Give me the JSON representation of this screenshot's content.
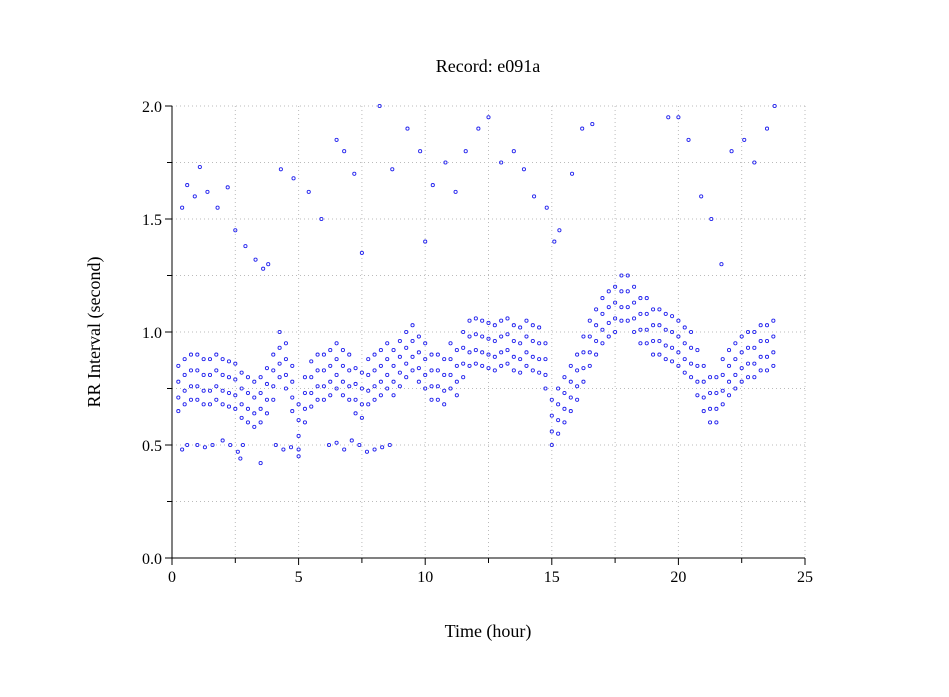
{
  "chart_data": {
    "type": "scatter",
    "title": "Record:  e091a",
    "xlabel": "Time (hour)",
    "ylabel": "RR Interval (second)",
    "xlim": [
      0,
      25
    ],
    "ylim": [
      0,
      2
    ],
    "xticks": [
      "0",
      "5",
      "10",
      "15",
      "20",
      "25"
    ],
    "yticks": [
      "0.0",
      "0.5",
      "1.0",
      "1.5",
      "2.0"
    ],
    "grid": true,
    "marker_color": "#2222ee",
    "band_points": [
      [
        0.25,
        0.65,
        0.71,
        0.78,
        0.85
      ],
      [
        0.5,
        0.68,
        0.74,
        0.81,
        0.88
      ],
      [
        0.75,
        0.7,
        0.76,
        0.83,
        0.9
      ],
      [
        1,
        0.7,
        0.76,
        0.83,
        0.9
      ],
      [
        1.25,
        0.68,
        0.74,
        0.81,
        0.88
      ],
      [
        1.5,
        0.68,
        0.74,
        0.81,
        0.88
      ],
      [
        1.75,
        0.7,
        0.76,
        0.83,
        0.9
      ],
      [
        2,
        0.68,
        0.74,
        0.81,
        0.88
      ],
      [
        2.25,
        0.67,
        0.73,
        0.8,
        0.87
      ],
      [
        2.5,
        0.66,
        0.72,
        0.79,
        0.86
      ],
      [
        2.75,
        0.62,
        0.68,
        0.75,
        0.82
      ],
      [
        3,
        0.6,
        0.66,
        0.73,
        0.8
      ],
      [
        3.25,
        0.58,
        0.64,
        0.71,
        0.78
      ],
      [
        3.5,
        0.6,
        0.66,
        0.73,
        0.8
      ],
      [
        3.75,
        0.64,
        0.7,
        0.77,
        0.84
      ],
      [
        4,
        0.7,
        0.76,
        0.83,
        0.9
      ],
      [
        4.25,
        0.8,
        0.86,
        0.93,
        1.0
      ],
      [
        4.5,
        0.75,
        0.81,
        0.88,
        0.95
      ],
      [
        4.75,
        0.65,
        0.71,
        0.78,
        0.85
      ],
      [
        5,
        0.48,
        0.54,
        0.61,
        0.68
      ],
      [
        5.25,
        0.6,
        0.66,
        0.73,
        0.8
      ],
      [
        5.5,
        0.67,
        0.73,
        0.8,
        0.87
      ],
      [
        5.75,
        0.7,
        0.76,
        0.83,
        0.9
      ],
      [
        6,
        0.7,
        0.76,
        0.83,
        0.9
      ],
      [
        6.25,
        0.72,
        0.78,
        0.85,
        0.92
      ],
      [
        6.5,
        0.75,
        0.81,
        0.88,
        0.95
      ],
      [
        6.75,
        0.72,
        0.78,
        0.85,
        0.92
      ],
      [
        7,
        0.7,
        0.76,
        0.83,
        0.9
      ],
      [
        7.25,
        0.64,
        0.7,
        0.77,
        0.84
      ],
      [
        7.5,
        0.62,
        0.68,
        0.75,
        0.82
      ],
      [
        7.75,
        0.68,
        0.74,
        0.81,
        0.88
      ],
      [
        8,
        0.7,
        0.76,
        0.83,
        0.9
      ],
      [
        8.25,
        0.72,
        0.78,
        0.85,
        0.92
      ],
      [
        8.5,
        0.75,
        0.81,
        0.88,
        0.95
      ],
      [
        8.75,
        0.72,
        0.78,
        0.85,
        0.92
      ],
      [
        9,
        0.76,
        0.82,
        0.89,
        0.96
      ],
      [
        9.25,
        0.8,
        0.86,
        0.93,
        1.0
      ],
      [
        9.5,
        0.83,
        0.89,
        0.96,
        1.03
      ],
      [
        9.75,
        0.78,
        0.84,
        0.91,
        0.98
      ],
      [
        10,
        0.75,
        0.81,
        0.88,
        0.95
      ],
      [
        10.25,
        0.7,
        0.76,
        0.83,
        0.9
      ],
      [
        10.5,
        0.7,
        0.76,
        0.83,
        0.9
      ],
      [
        10.75,
        0.68,
        0.74,
        0.81,
        0.88
      ],
      [
        11,
        0.75,
        0.81,
        0.88,
        0.95
      ],
      [
        11.25,
        0.72,
        0.78,
        0.85,
        0.92
      ],
      [
        11.5,
        0.8,
        0.86,
        0.93,
        1.0
      ],
      [
        11.75,
        0.85,
        0.91,
        0.98,
        1.05
      ],
      [
        12,
        0.86,
        0.92,
        0.99,
        1.06
      ],
      [
        12.25,
        0.85,
        0.91,
        0.98,
        1.05
      ],
      [
        12.5,
        0.84,
        0.9,
        0.97,
        1.04
      ],
      [
        12.75,
        0.83,
        0.89,
        0.96,
        1.03
      ],
      [
        13,
        0.85,
        0.91,
        0.98,
        1.05
      ],
      [
        13.25,
        0.86,
        0.92,
        0.99,
        1.06
      ],
      [
        13.5,
        0.83,
        0.89,
        0.96,
        1.03
      ],
      [
        13.75,
        0.82,
        0.88,
        0.95,
        1.02
      ],
      [
        14,
        0.85,
        0.91,
        0.98,
        1.05
      ],
      [
        14.25,
        0.83,
        0.89,
        0.96,
        1.03
      ],
      [
        14.5,
        0.82,
        0.88,
        0.95,
        1.02
      ],
      [
        14.75,
        0.75,
        0.81,
        0.88,
        0.95
      ],
      [
        15,
        0.5,
        0.56,
        0.63,
        0.7
      ],
      [
        15.25,
        0.55,
        0.61,
        0.68,
        0.75
      ],
      [
        15.5,
        0.6,
        0.66,
        0.73,
        0.8
      ],
      [
        15.75,
        0.65,
        0.71,
        0.78,
        0.85
      ],
      [
        16,
        0.7,
        0.76,
        0.83,
        0.9
      ],
      [
        16.25,
        0.78,
        0.84,
        0.91,
        0.98
      ],
      [
        16.5,
        0.85,
        0.91,
        0.98,
        1.05
      ],
      [
        16.75,
        0.9,
        0.96,
        1.03,
        1.1
      ],
      [
        17,
        0.95,
        1.01,
        1.08,
        1.15
      ],
      [
        17.25,
        0.98,
        1.04,
        1.11,
        1.18
      ],
      [
        17.5,
        1.0,
        1.06,
        1.13,
        1.2
      ],
      [
        17.75,
        1.05,
        1.11,
        1.18,
        1.25
      ],
      [
        18,
        1.05,
        1.11,
        1.18,
        1.25
      ],
      [
        18.25,
        1.0,
        1.06,
        1.13,
        1.2
      ],
      [
        18.5,
        0.95,
        1.01,
        1.08,
        1.15
      ],
      [
        18.75,
        0.95,
        1.01,
        1.08,
        1.15
      ],
      [
        19,
        0.9,
        0.96,
        1.03,
        1.1
      ],
      [
        19.25,
        0.9,
        0.96,
        1.03,
        1.1
      ],
      [
        19.5,
        0.88,
        0.94,
        1.01,
        1.08
      ],
      [
        19.75,
        0.87,
        0.93,
        1.0,
        1.07
      ],
      [
        20,
        0.85,
        0.91,
        0.98,
        1.05
      ],
      [
        20.25,
        0.82,
        0.88,
        0.95,
        1.02
      ],
      [
        20.5,
        0.8,
        0.86,
        0.93,
        1.0
      ],
      [
        20.75,
        0.72,
        0.78,
        0.85,
        0.92
      ],
      [
        21,
        0.65,
        0.71,
        0.78,
        0.85
      ],
      [
        21.25,
        0.6,
        0.66,
        0.73,
        0.8
      ],
      [
        21.5,
        0.6,
        0.66,
        0.73,
        0.8
      ],
      [
        21.75,
        0.68,
        0.74,
        0.81,
        0.88
      ],
      [
        22,
        0.72,
        0.78,
        0.85,
        0.92
      ],
      [
        22.25,
        0.75,
        0.81,
        0.88,
        0.95
      ],
      [
        22.5,
        0.78,
        0.84,
        0.91,
        0.98
      ],
      [
        22.75,
        0.8,
        0.86,
        0.93,
        1.0
      ],
      [
        23,
        0.8,
        0.86,
        0.93,
        1.0
      ],
      [
        23.25,
        0.83,
        0.89,
        0.96,
        1.03
      ],
      [
        23.5,
        0.83,
        0.89,
        0.96,
        1.03
      ],
      [
        23.75,
        0.85,
        0.91,
        0.98,
        1.05
      ]
    ],
    "points": [
      [
        0.4,
        0.48
      ],
      [
        0.6,
        0.5
      ],
      [
        1,
        0.5
      ],
      [
        1.3,
        0.49
      ],
      [
        1.6,
        0.5
      ],
      [
        2,
        0.52
      ],
      [
        2.3,
        0.5
      ],
      [
        2.6,
        0.47
      ],
      [
        2.8,
        0.5
      ],
      [
        2.7,
        0.44
      ],
      [
        3.5,
        0.42
      ],
      [
        4.1,
        0.5
      ],
      [
        4.4,
        0.48
      ],
      [
        4.7,
        0.49
      ],
      [
        5,
        0.45
      ],
      [
        6.2,
        0.5
      ],
      [
        6.5,
        0.51
      ],
      [
        6.8,
        0.48
      ],
      [
        7.1,
        0.52
      ],
      [
        7.4,
        0.5
      ],
      [
        7.7,
        0.47
      ],
      [
        8,
        0.48
      ],
      [
        8.3,
        0.49
      ],
      [
        8.6,
        0.5
      ],
      [
        0.4,
        1.55
      ],
      [
        0.6,
        1.65
      ],
      [
        0.9,
        1.6
      ],
      [
        1.1,
        1.73
      ],
      [
        1.4,
        1.62
      ],
      [
        1.8,
        1.55
      ],
      [
        2.2,
        1.64
      ],
      [
        2.5,
        1.45
      ],
      [
        2.9,
        1.38
      ],
      [
        3.3,
        1.32
      ],
      [
        3.6,
        1.28
      ],
      [
        3.8,
        1.3
      ],
      [
        4.3,
        1.72
      ],
      [
        4.8,
        1.68
      ],
      [
        5.4,
        1.62
      ],
      [
        5.9,
        1.5
      ],
      [
        6.5,
        1.85
      ],
      [
        6.8,
        1.8
      ],
      [
        7.2,
        1.7
      ],
      [
        7.5,
        1.35
      ],
      [
        8.2,
        2.0
      ],
      [
        8.7,
        1.72
      ],
      [
        9.3,
        1.9
      ],
      [
        9.8,
        1.8
      ],
      [
        10,
        1.4
      ],
      [
        10.3,
        1.65
      ],
      [
        10.8,
        1.75
      ],
      [
        11.2,
        1.62
      ],
      [
        11.6,
        1.8
      ],
      [
        12.1,
        1.9
      ],
      [
        12.5,
        1.95
      ],
      [
        13,
        1.75
      ],
      [
        13.5,
        1.8
      ],
      [
        13.9,
        1.72
      ],
      [
        14.3,
        1.6
      ],
      [
        14.8,
        1.55
      ],
      [
        15.1,
        1.4
      ],
      [
        15.3,
        1.45
      ],
      [
        15.8,
        1.7
      ],
      [
        16.2,
        1.9
      ],
      [
        16.6,
        1.92
      ],
      [
        19.6,
        1.95
      ],
      [
        20,
        1.95
      ],
      [
        20.4,
        1.85
      ],
      [
        20.9,
        1.6
      ],
      [
        21.3,
        1.5
      ],
      [
        21.7,
        1.3
      ],
      [
        22.1,
        1.8
      ],
      [
        22.6,
        1.85
      ],
      [
        23,
        1.75
      ],
      [
        23.5,
        1.9
      ],
      [
        23.8,
        2.0
      ]
    ]
  }
}
